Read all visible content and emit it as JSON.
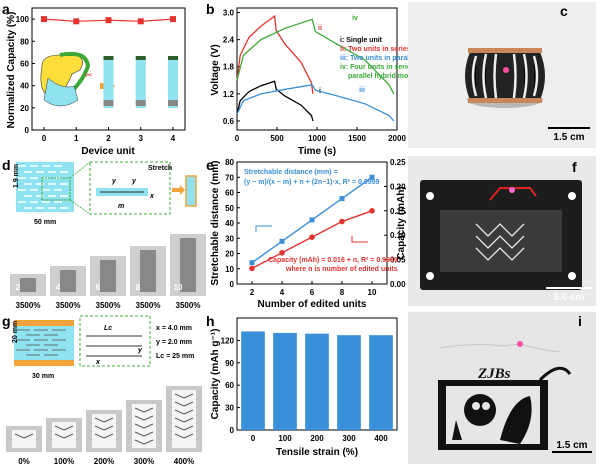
{
  "panels": {
    "a": "a",
    "b": "b",
    "c": "c",
    "d": "d",
    "e": "e",
    "f": "f",
    "g": "g",
    "h": "h",
    "i": "i"
  },
  "colors": {
    "red": "#e4332f",
    "blue": "#3a8fd9",
    "green": "#3aa935",
    "cyan": "#8fe3f0",
    "orange": "#f2a33a",
    "darkred": "#8b0000",
    "photo_bg": "#e9e9e9",
    "black_plate": "#1d1d1d"
  },
  "chart_data": [
    {
      "panel": "a",
      "type": "scatter",
      "x": [
        0,
        1,
        2,
        3,
        4
      ],
      "values": [
        100,
        98,
        99,
        98,
        100
      ],
      "xlabel": "Device unit",
      "ylabel": "Normalized Capacity (%)",
      "ylim": [
        0,
        110
      ],
      "yticks": [
        0,
        20,
        40,
        60,
        80,
        100
      ],
      "xticks": [
        0,
        1,
        2,
        3,
        4
      ]
    },
    {
      "panel": "b",
      "type": "line",
      "xlabel": "Time (s)",
      "ylabel": "Voltage (V)",
      "xlim": [
        0,
        2000
      ],
      "ylim": [
        0.4,
        3.1
      ],
      "xticks": [
        0,
        500,
        1000,
        1500,
        2000
      ],
      "yticks": [
        0.6,
        1.2,
        1.8,
        2.4,
        3.0
      ],
      "legend": [
        {
          "key": "i",
          "label": "i: Single unit",
          "color": "#000000"
        },
        {
          "key": "ii",
          "label": "ii: Two units in series",
          "color": "#e4332f"
        },
        {
          "key": "iii",
          "label": "iii: Two units in parallel",
          "color": "#3a8fd9"
        },
        {
          "key": "iv",
          "label": "iv: Four units in series-parallel hybrid mode",
          "color": "#3aa935"
        }
      ],
      "series": [
        {
          "label": "i",
          "color": "#000000",
          "points": [
            [
              0,
              0.75
            ],
            [
              40,
              1.05
            ],
            [
              150,
              1.25
            ],
            [
              300,
              1.38
            ],
            [
              470,
              1.48
            ],
            [
              490,
              1.3
            ],
            [
              600,
              1.15
            ],
            [
              800,
              0.95
            ],
            [
              930,
              0.72
            ],
            [
              950,
              0.6
            ]
          ]
        },
        {
          "label": "ii",
          "color": "#e4332f",
          "points": [
            [
              0,
              1.5
            ],
            [
              40,
              2.05
            ],
            [
              150,
              2.45
            ],
            [
              300,
              2.7
            ],
            [
              470,
              2.92
            ],
            [
              490,
              2.6
            ],
            [
              600,
              2.3
            ],
            [
              800,
              1.9
            ],
            [
              930,
              1.45
            ],
            [
              950,
              1.2
            ]
          ]
        },
        {
          "label": "iii",
          "color": "#3a8fd9",
          "points": [
            [
              0,
              0.75
            ],
            [
              80,
              1.05
            ],
            [
              300,
              1.2
            ],
            [
              600,
              1.3
            ],
            [
              940,
              1.4
            ],
            [
              980,
              1.28
            ],
            [
              1200,
              1.18
            ],
            [
              1600,
              0.98
            ],
            [
              1900,
              0.72
            ],
            [
              1960,
              0.6
            ]
          ]
        },
        {
          "label": "iv",
          "color": "#3aa935",
          "points": [
            [
              0,
              1.5
            ],
            [
              80,
              2.05
            ],
            [
              300,
              2.4
            ],
            [
              600,
              2.65
            ],
            [
              940,
              2.85
            ],
            [
              980,
              2.58
            ],
            [
              1200,
              2.35
            ],
            [
              1600,
              1.95
            ],
            [
              1900,
              1.4
            ],
            [
              1960,
              1.2
            ]
          ]
        }
      ]
    },
    {
      "panel": "e",
      "type": "line",
      "x": [
        2,
        4,
        6,
        8,
        10
      ],
      "xlabel": "Number of edited units",
      "ylabel": "Stretchable distance (mm)",
      "ylabel2": "Capacity (mAh)",
      "xlim": [
        1,
        11
      ],
      "ylim": [
        0,
        80
      ],
      "ylim2": [
        0,
        0.25
      ],
      "xticks": [
        2,
        4,
        6,
        8,
        10
      ],
      "yticks": [
        0,
        10,
        20,
        30,
        40,
        50,
        60,
        70,
        80
      ],
      "yticks2": [
        0.0,
        0.05,
        0.1,
        0.15,
        0.2,
        0.25
      ],
      "series": [
        {
          "name": "Stretchable distance",
          "axis": "left",
          "color": "#3a8fd9",
          "marker": "square",
          "values": [
            14,
            28,
            42,
            56,
            70
          ]
        },
        {
          "name": "Capacity",
          "axis": "right",
          "color": "#e4332f",
          "marker": "circle",
          "values": [
            0.032,
            0.064,
            0.096,
            0.128,
            0.15
          ]
        }
      ],
      "annotations": {
        "top_title": "Stretchable distance (mm) =",
        "top_formula": "(y − m)/(x − m) + n + (2n−1)·x, R² = 0.9999",
        "bottom_formula": "Capacity (mAh) = 0.016 + n, R² = 0.9989",
        "bottom_note": "where n is number of edited units"
      }
    },
    {
      "panel": "h",
      "type": "bar",
      "categories": [
        "0",
        "100",
        "200",
        "300",
        "400"
      ],
      "values": [
        132,
        130,
        129,
        127,
        127
      ],
      "xlabel": "Tensile strain (%)",
      "ylabel": "Capacity (mAh g⁻¹)",
      "ylim": [
        0,
        150
      ],
      "yticks": [
        0,
        30,
        60,
        90,
        120
      ],
      "color": "#3a8fd9"
    }
  ],
  "d": {
    "dim_height": "1.9 mm",
    "dim_width": "50 mm",
    "stretch": "Stretch",
    "y1": "y",
    "y2": "y",
    "m": "m",
    "x": "x",
    "photo_numbers": [
      "2",
      "4",
      "6",
      "8",
      "10"
    ],
    "percents": [
      "3500%",
      "3500%",
      "3500%",
      "3500%",
      "3500%"
    ]
  },
  "g": {
    "dim_height": "20 mm",
    "dim_width": "30 mm",
    "lc": "Lc",
    "x_label": "x",
    "y_label": "y",
    "params": [
      "x = 4.0 mm",
      "y = 2.0 mm",
      "Lc = 25 mm"
    ],
    "percents": [
      "0%",
      "100%",
      "200%",
      "300%",
      "400%"
    ]
  },
  "scalebars": {
    "c": "1.5 cm",
    "f": "3.0 cm",
    "i": "1.5 cm"
  },
  "i": {
    "logo": "ZJBs"
  }
}
